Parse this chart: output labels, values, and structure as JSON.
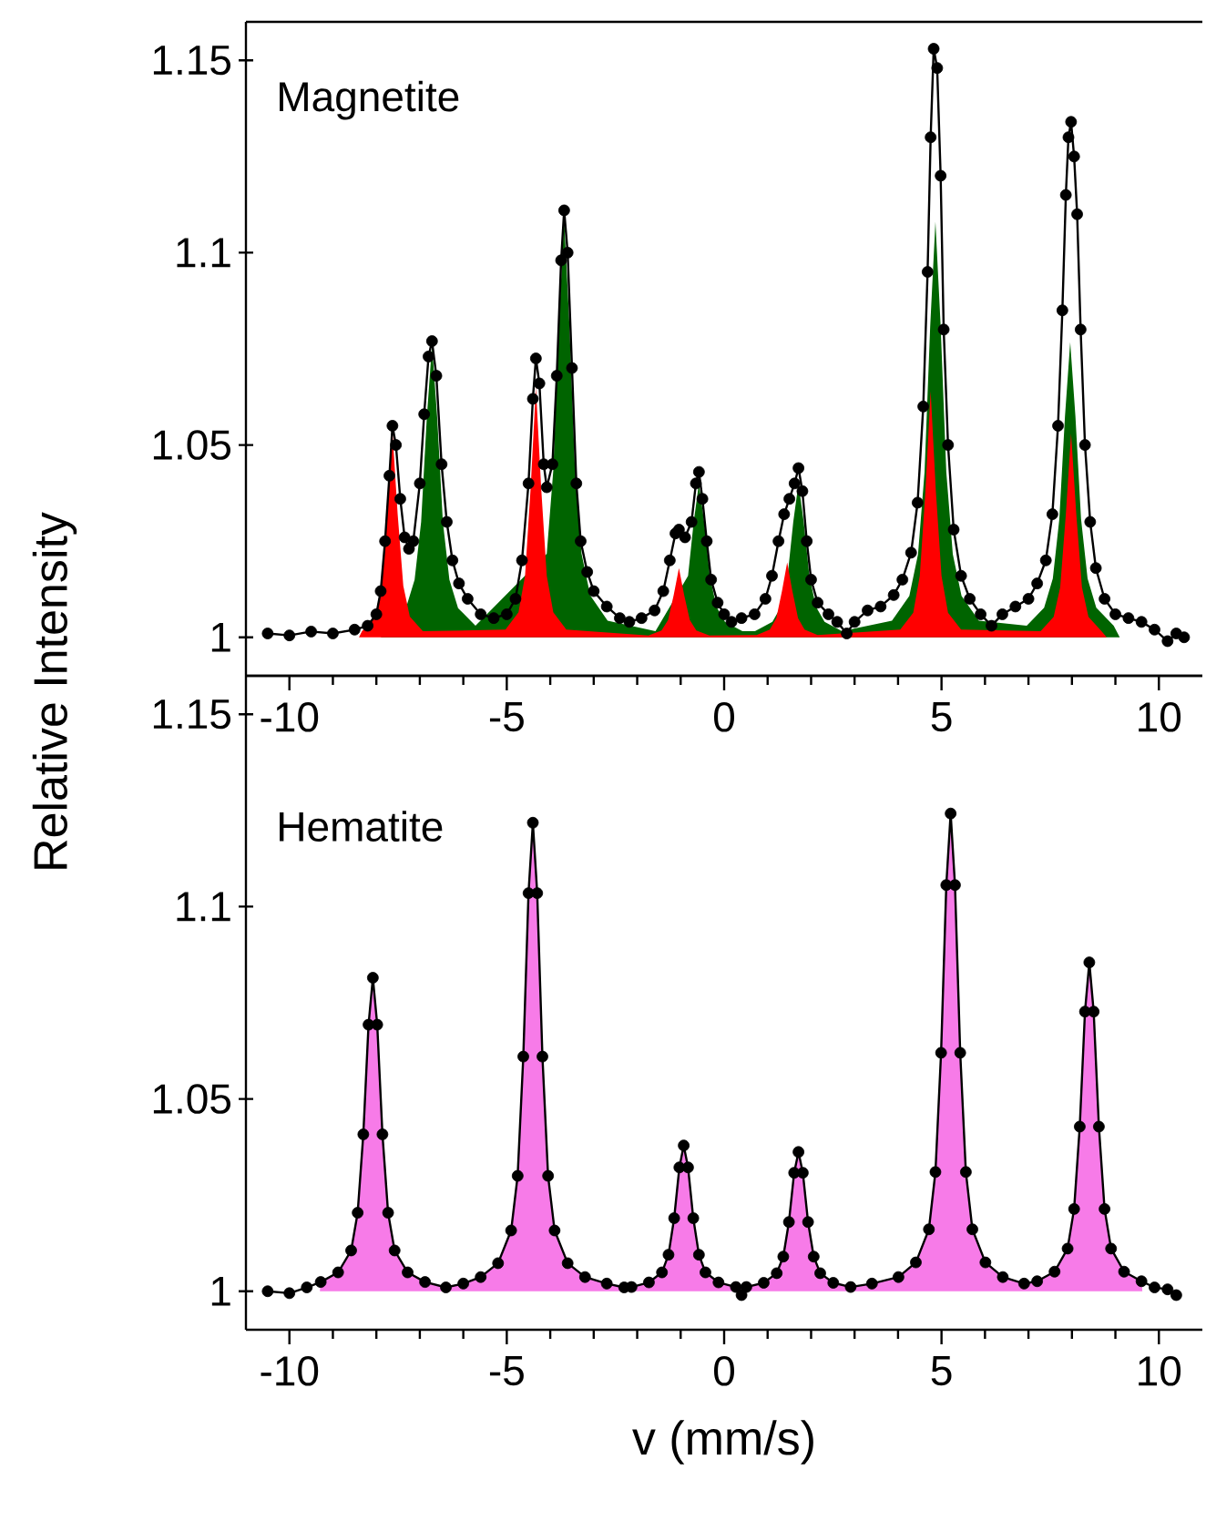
{
  "chart_data": [
    {
      "type": "scatter",
      "ylabel": "Relative Intensity",
      "annotations": [
        "Magnetite"
      ],
      "xlim": [
        -11,
        11
      ],
      "ylim": [
        0.99,
        1.16
      ],
      "xticks": [
        -10,
        -5,
        0,
        5,
        10
      ],
      "yticks": [
        1,
        1.05,
        1.1,
        1.15
      ],
      "series": [
        {
          "type": "area",
          "color": "#006400",
          "x": [
            -7.9,
            -7.72,
            -7.32,
            -7.12,
            -6.97,
            -6.84,
            -6.72,
            -6.6,
            -6.47,
            -6.32,
            -6.12,
            -5.72,
            -4.68,
            -4.28,
            -4.08,
            -3.93,
            -3.8,
            -3.68,
            -3.56,
            -3.43,
            -3.28,
            -3.08,
            -2.68,
            -1.58,
            -1.18,
            -0.98,
            -0.83,
            -0.7,
            -0.58,
            -0.46,
            -0.33,
            -0.18,
            0.02,
            0.42,
            0.71,
            1.11,
            1.31,
            1.46,
            1.59,
            1.71,
            1.83,
            1.96,
            2.11,
            2.31,
            2.71,
            3.86,
            4.26,
            4.46,
            4.61,
            4.74,
            4.86,
            4.98,
            5.11,
            5.26,
            5.46,
            5.86,
            6.96,
            7.36,
            7.56,
            7.71,
            7.84,
            7.96,
            8.08,
            8.21,
            8.36,
            8.56,
            8.96,
            9.1
          ],
          "values": [
            1.0,
            null,
            1.0076,
            1.015,
            1.03,
            1.057,
            1.076,
            1.057,
            1.03,
            1.015,
            1.0076,
            1.003,
            null,
            null,
            1.0217,
            1.0434,
            1.0815,
            1.1086,
            1.0815,
            1.0434,
            1.0217,
            1.0109,
            1.0043,
            1.0016,
            null,
            null,
            1.016,
            1.03,
            1.04,
            1.03,
            1.016,
            1.008,
            1.004,
            1.0016,
            1.0016,
            1.004,
            1.008,
            1.016,
            1.03,
            1.04,
            1.03,
            1.016,
            1.008,
            1.004,
            1.0016,
            1.0043,
            1.0108,
            1.0216,
            1.043,
            1.081,
            1.108,
            1.081,
            1.043,
            1.0216,
            1.0108,
            1.0043,
            1.003,
            1.0077,
            1.0153,
            1.0307,
            1.0575,
            1.0767,
            1.0575,
            1.0307,
            1.0153,
            1.0077,
            1.003,
            1.0
          ]
        },
        {
          "type": "area",
          "color": "#ff0000",
          "x": [
            -8.4,
            -8.33,
            -8.03,
            -7.88,
            -7.75,
            -7.63,
            -7.51,
            -7.38,
            -7.23,
            -6.93,
            -5.03,
            -4.73,
            -4.58,
            -4.45,
            -4.33,
            -4.21,
            -4.08,
            -3.93,
            -3.63,
            -1.74,
            -1.44,
            -1.29,
            -1.16,
            -1.04,
            -0.92,
            -0.79,
            -0.64,
            -0.34,
            0.75,
            1.05,
            1.2,
            1.33,
            1.45,
            1.57,
            1.7,
            1.85,
            2.15,
            4.05,
            4.35,
            4.5,
            4.63,
            4.75,
            4.87,
            5.0,
            5.15,
            5.45,
            7.28,
            7.58,
            7.73,
            7.86,
            7.98,
            8.1,
            8.23,
            8.38,
            8.68,
            8.8
          ],
          "values": [
            1.0,
            1.0016,
            1.0054,
            1.0134,
            1.032,
            1.0535,
            1.032,
            1.0134,
            1.0054,
            1.0016,
            1.002,
            1.0065,
            1.016,
            1.039,
            1.065,
            1.039,
            1.016,
            1.0065,
            1.002,
            1.0005,
            1.0018,
            1.0045,
            1.011,
            1.018,
            1.011,
            1.0045,
            1.0018,
            1.0005,
            1.0006,
            1.002,
            1.005,
            1.012,
            1.0195,
            1.012,
            1.005,
            1.002,
            1.0006,
            1.002,
            1.0064,
            1.016,
            1.038,
            1.064,
            1.038,
            1.016,
            1.0064,
            1.002,
            1.0016,
            1.0053,
            1.013,
            1.032,
            1.053,
            1.032,
            1.013,
            1.0053,
            1.0016,
            1.0
          ]
        },
        {
          "type": "line",
          "color": "#000000",
          "x": [
            -10.5,
            -10.0,
            -9.5,
            -9.0,
            -8.5,
            -8.2,
            -8.0,
            -7.9,
            -7.8,
            -7.7,
            -7.63,
            -7.55,
            -7.45,
            -7.35,
            -7.25,
            -7.15,
            -7.0,
            -6.9,
            -6.8,
            -6.72,
            -6.62,
            -6.5,
            -6.38,
            -6.25,
            -6.1,
            -5.9,
            -5.6,
            -5.3,
            -5.0,
            -4.8,
            -4.65,
            -4.5,
            -4.4,
            -4.33,
            -4.25,
            -4.15,
            -4.08,
            -3.95,
            -3.85,
            -3.75,
            -3.68,
            -3.6,
            -3.5,
            -3.4,
            -3.3,
            -3.15,
            -3.0,
            -2.7,
            -2.4,
            -2.18,
            -1.9,
            -1.6,
            -1.4,
            -1.25,
            -1.12,
            -1.04,
            -0.9,
            -0.75,
            -0.65,
            -0.58,
            -0.5,
            -0.4,
            -0.3,
            -0.15,
            0.0,
            0.17,
            0.4,
            0.7,
            0.95,
            1.1,
            1.25,
            1.38,
            1.5,
            1.62,
            1.71,
            1.8,
            1.9,
            2.0,
            2.15,
            2.4,
            2.6,
            2.82,
            3.0,
            3.3,
            3.6,
            3.9,
            4.1,
            4.3,
            4.45,
            4.58,
            4.68,
            4.75,
            4.82,
            4.9,
            4.98,
            5.05,
            5.15,
            5.28,
            5.45,
            5.65,
            5.9,
            6.15,
            6.4,
            6.7,
            7.0,
            7.2,
            7.4,
            7.55,
            7.68,
            7.78,
            7.86,
            7.92,
            7.98,
            8.05,
            8.12,
            8.2,
            8.3,
            8.42,
            8.55,
            8.75,
            9.0,
            9.3,
            9.6,
            9.9,
            10.2,
            10.4,
            10.58
          ],
          "values": [
            1.001,
            1.0005,
            1.0015,
            1.001,
            1.002,
            1.003,
            1.006,
            1.012,
            1.025,
            1.042,
            1.055,
            1.05,
            1.036,
            1.026,
            1.023,
            1.025,
            1.04,
            1.058,
            1.073,
            1.077,
            1.068,
            1.045,
            1.03,
            1.02,
            1.014,
            1.01,
            1.006,
            1.005,
            1.006,
            1.01,
            1.02,
            1.04,
            1.062,
            1.0725,
            1.066,
            1.045,
            1.039,
            1.045,
            1.068,
            1.098,
            1.111,
            1.1,
            1.07,
            1.04,
            1.025,
            1.017,
            1.012,
            1.008,
            1.005,
            1.004,
            1.005,
            1.007,
            1.012,
            1.02,
            1.027,
            1.028,
            1.026,
            1.03,
            1.04,
            1.043,
            1.036,
            1.025,
            1.015,
            1.009,
            1.006,
            1.004,
            1.005,
            1.006,
            1.01,
            1.016,
            1.025,
            1.032,
            1.036,
            1.04,
            1.044,
            1.038,
            1.025,
            1.015,
            1.009,
            1.006,
            1.004,
            1.001,
            1.004,
            1.007,
            1.008,
            1.011,
            1.015,
            1.022,
            1.035,
            1.06,
            1.095,
            1.13,
            1.153,
            1.148,
            1.12,
            1.08,
            1.05,
            1.028,
            1.016,
            1.01,
            1.006,
            1.003,
            1.006,
            1.008,
            1.01,
            1.014,
            1.02,
            1.032,
            1.055,
            1.085,
            1.115,
            1.13,
            1.134,
            1.125,
            1.11,
            1.08,
            1.05,
            1.03,
            1.018,
            1.01,
            1.006,
            1.005,
            1.004,
            1.002,
            0.999,
            1.001,
            1.0
          ]
        },
        {
          "color": "#000000",
          "marker": "circle",
          "x": [
            -10.5,
            -10.0,
            -9.5,
            -9.0,
            -8.5,
            -8.2,
            -8.0,
            -7.9,
            -7.8,
            -7.7,
            -7.63,
            -7.55,
            -7.45,
            -7.35,
            -7.25,
            -7.15,
            -7.0,
            -6.9,
            -6.8,
            -6.72,
            -6.62,
            -6.5,
            -6.38,
            -6.25,
            -6.1,
            -5.9,
            -5.6,
            -5.3,
            -5.0,
            -4.8,
            -4.65,
            -4.5,
            -4.4,
            -4.33,
            -4.25,
            -4.15,
            -4.08,
            -3.95,
            -3.85,
            -3.75,
            -3.68,
            -3.6,
            -3.5,
            -3.4,
            -3.3,
            -3.15,
            -3.0,
            -2.7,
            -2.4,
            -2.18,
            -1.9,
            -1.6,
            -1.4,
            -1.25,
            -1.12,
            -1.04,
            -0.9,
            -0.75,
            -0.65,
            -0.58,
            -0.5,
            -0.4,
            -0.3,
            -0.15,
            0.0,
            0.17,
            0.4,
            0.7,
            0.95,
            1.1,
            1.25,
            1.38,
            1.5,
            1.62,
            1.71,
            1.8,
            1.9,
            2.0,
            2.15,
            2.4,
            2.6,
            2.82,
            3.0,
            3.3,
            3.6,
            3.9,
            4.1,
            4.3,
            4.45,
            4.58,
            4.68,
            4.75,
            4.82,
            4.9,
            4.98,
            5.05,
            5.15,
            5.28,
            5.45,
            5.65,
            5.9,
            6.15,
            6.4,
            6.7,
            7.0,
            7.2,
            7.4,
            7.55,
            7.68,
            7.78,
            7.86,
            7.92,
            7.98,
            8.05,
            8.12,
            8.2,
            8.3,
            8.42,
            8.55,
            8.75,
            9.0,
            9.3,
            9.6,
            9.9,
            10.2,
            10.4,
            10.58
          ],
          "values": [
            1.001,
            1.0005,
            1.0015,
            1.001,
            1.002,
            1.003,
            1.006,
            1.012,
            1.025,
            1.042,
            1.055,
            1.05,
            1.036,
            1.026,
            1.023,
            1.025,
            1.04,
            1.058,
            1.073,
            1.077,
            1.068,
            1.045,
            1.03,
            1.02,
            1.014,
            1.01,
            1.006,
            1.005,
            1.006,
            1.01,
            1.02,
            1.04,
            1.062,
            1.0725,
            1.066,
            1.045,
            1.039,
            1.045,
            1.068,
            1.098,
            1.111,
            1.1,
            1.07,
            1.04,
            1.025,
            1.017,
            1.012,
            1.008,
            1.005,
            1.004,
            1.005,
            1.007,
            1.012,
            1.02,
            1.027,
            1.028,
            1.026,
            1.03,
            1.04,
            1.043,
            1.036,
            1.025,
            1.015,
            1.009,
            1.006,
            1.004,
            1.005,
            1.006,
            1.01,
            1.016,
            1.025,
            1.032,
            1.036,
            1.04,
            1.044,
            1.038,
            1.025,
            1.015,
            1.009,
            1.006,
            1.004,
            1.001,
            1.004,
            1.007,
            1.008,
            1.011,
            1.015,
            1.022,
            1.035,
            1.06,
            1.095,
            1.13,
            1.153,
            1.148,
            1.12,
            1.08,
            1.05,
            1.028,
            1.016,
            1.01,
            1.006,
            1.003,
            1.006,
            1.008,
            1.01,
            1.014,
            1.02,
            1.032,
            1.055,
            1.085,
            1.115,
            1.13,
            1.134,
            1.125,
            1.11,
            1.08,
            1.05,
            1.03,
            1.018,
            1.01,
            1.006,
            1.005,
            1.004,
            1.002,
            0.999,
            1.001,
            1.0
          ]
        }
      ]
    },
    {
      "type": "scatter",
      "xlabel": "v (mm/s)",
      "annotations": [
        "Hematite"
      ],
      "xlim": [
        -11,
        11
      ],
      "ylim": [
        0.99,
        1.16
      ],
      "xticks": [
        -10,
        -5,
        0,
        5,
        10
      ],
      "yticks": [
        1,
        1.05,
        1.1,
        1.15
      ],
      "series": [
        {
          "type": "area",
          "color": "#f77be8",
          "x": [
            -9.3,
            -9.28,
            -8.88,
            -8.58,
            -8.43,
            -8.3,
            -8.18,
            -8.08,
            -7.98,
            -7.86,
            -7.73,
            -7.58,
            -7.28,
            -6.88,
            -6.4,
            -6.0,
            -5.6,
            -5.2,
            -4.9,
            -4.75,
            -4.62,
            -4.5,
            -4.4,
            -4.3,
            -4.18,
            -4.05,
            -3.9,
            -3.6,
            -3.2,
            -2.7,
            -2.3,
            -2.13,
            -1.73,
            -1.43,
            -1.28,
            -1.15,
            -1.03,
            -0.93,
            -0.83,
            -0.71,
            -0.58,
            -0.43,
            -0.13,
            0.27,
            0.51,
            0.91,
            1.21,
            1.36,
            1.49,
            1.61,
            1.71,
            1.81,
            1.93,
            2.06,
            2.21,
            2.51,
            2.91,
            3.4,
            4.01,
            4.41,
            4.71,
            4.86,
            4.99,
            5.11,
            5.21,
            5.31,
            5.43,
            5.56,
            5.71,
            6.01,
            6.41,
            6.9,
            7.2,
            7.6,
            7.9,
            8.05,
            8.18,
            8.3,
            8.4,
            8.5,
            8.62,
            8.75,
            8.9,
            9.2,
            9.6,
            9.62
          ],
          "values": [
            1.0,
            1.0024,
            1.0049,
            1.0106,
            1.0204,
            1.0408,
            1.0693,
            1.0815,
            1.0693,
            1.0408,
            1.0204,
            1.0106,
            1.0049,
            1.0024,
            1.001,
            1.002,
            1.0037,
            1.0073,
            1.0158,
            1.03,
            1.061,
            1.1035,
            1.1218,
            1.1035,
            1.061,
            1.03,
            1.0158,
            1.0073,
            1.0037,
            1.002,
            1.001,
            1.0011,
            1.0023,
            1.0049,
            1.0095,
            1.019,
            1.0322,
            1.0379,
            1.0322,
            1.019,
            1.0095,
            1.0049,
            1.0023,
            1.0011,
            1.0011,
            1.0022,
            1.0047,
            1.009,
            1.018,
            1.0308,
            1.0362,
            1.0308,
            1.018,
            1.009,
            1.0047,
            1.0022,
            1.0011,
            1.002,
            1.0037,
            1.0075,
            1.0161,
            1.031,
            1.062,
            1.1056,
            1.1242,
            1.1056,
            1.062,
            1.031,
            1.0161,
            1.0075,
            1.0037,
            1.002,
            1.0026,
            1.0051,
            1.0111,
            1.0214,
            1.0428,
            1.0727,
            1.0855,
            1.0727,
            1.0428,
            1.0214,
            1.0111,
            1.0051,
            1.0026,
            1.0
          ]
        },
        {
          "type": "line",
          "color": "#000000",
          "x": [
            -10.5,
            -10.0,
            -9.6,
            -9.28,
            -8.88,
            -8.58,
            -8.43,
            -8.3,
            -8.18,
            -8.08,
            -7.98,
            -7.86,
            -7.73,
            -7.58,
            -7.28,
            -6.88,
            -6.4,
            -6.0,
            -5.6,
            -5.2,
            -4.9,
            -4.75,
            -4.62,
            -4.5,
            -4.4,
            -4.3,
            -4.18,
            -4.05,
            -3.9,
            -3.6,
            -3.2,
            -2.7,
            -2.3,
            -2.13,
            -1.73,
            -1.43,
            -1.28,
            -1.15,
            -1.03,
            -0.93,
            -0.83,
            -0.71,
            -0.58,
            -0.43,
            -0.13,
            0.27,
            0.4,
            0.51,
            0.91,
            1.21,
            1.36,
            1.49,
            1.61,
            1.71,
            1.81,
            1.93,
            2.06,
            2.21,
            2.51,
            2.91,
            3.4,
            4.01,
            4.41,
            4.71,
            4.86,
            4.99,
            5.11,
            5.21,
            5.31,
            5.43,
            5.56,
            5.71,
            6.01,
            6.41,
            6.9,
            7.2,
            7.6,
            7.9,
            8.05,
            8.18,
            8.3,
            8.4,
            8.5,
            8.62,
            8.75,
            8.9,
            9.2,
            9.6,
            9.9,
            10.2,
            10.4
          ],
          "values": [
            1.0,
            0.9995,
            1.001,
            1.0024,
            1.0049,
            1.0106,
            1.0204,
            1.0408,
            1.0693,
            1.0815,
            1.0693,
            1.0408,
            1.0204,
            1.0106,
            1.0049,
            1.0024,
            1.001,
            1.002,
            1.0037,
            1.0073,
            1.0158,
            1.03,
            1.061,
            1.1035,
            1.1218,
            1.1035,
            1.061,
            1.03,
            1.0158,
            1.0073,
            1.0037,
            1.002,
            1.001,
            1.0011,
            1.0023,
            1.0049,
            1.0095,
            1.019,
            1.0322,
            1.0379,
            1.0322,
            1.019,
            1.0095,
            1.0049,
            1.0023,
            1.0011,
            0.999,
            1.0011,
            1.0022,
            1.0047,
            1.009,
            1.018,
            1.0308,
            1.0362,
            1.0308,
            1.018,
            1.009,
            1.0047,
            1.0022,
            1.0011,
            1.002,
            1.0037,
            1.0075,
            1.0161,
            1.031,
            1.062,
            1.1056,
            1.1242,
            1.1056,
            1.062,
            1.031,
            1.0161,
            1.0075,
            1.0037,
            1.002,
            1.0026,
            1.0051,
            1.0111,
            1.0214,
            1.0428,
            1.0727,
            1.0855,
            1.0727,
            1.0428,
            1.0214,
            1.0111,
            1.0051,
            1.0026,
            1.001,
            1.0005,
            0.999
          ]
        },
        {
          "color": "#000000",
          "marker": "circle",
          "x": [
            -10.5,
            -10.0,
            -9.6,
            -9.28,
            -8.88,
            -8.58,
            -8.43,
            -8.3,
            -8.18,
            -8.08,
            -7.98,
            -7.86,
            -7.73,
            -7.58,
            -7.28,
            -6.88,
            -6.4,
            -6.0,
            -5.6,
            -5.2,
            -4.9,
            -4.75,
            -4.62,
            -4.5,
            -4.4,
            -4.3,
            -4.18,
            -4.05,
            -3.9,
            -3.6,
            -3.2,
            -2.7,
            -2.3,
            -2.13,
            -1.73,
            -1.43,
            -1.28,
            -1.15,
            -1.03,
            -0.93,
            -0.83,
            -0.71,
            -0.58,
            -0.43,
            -0.13,
            0.27,
            0.4,
            0.51,
            0.91,
            1.21,
            1.36,
            1.49,
            1.61,
            1.71,
            1.81,
            1.93,
            2.06,
            2.21,
            2.51,
            2.91,
            3.4,
            4.01,
            4.41,
            4.71,
            4.86,
            4.99,
            5.11,
            5.21,
            5.31,
            5.43,
            5.56,
            5.71,
            6.01,
            6.41,
            6.9,
            7.2,
            7.6,
            7.9,
            8.05,
            8.18,
            8.3,
            8.4,
            8.5,
            8.62,
            8.75,
            8.9,
            9.2,
            9.6,
            9.9,
            10.2,
            10.4
          ],
          "values": [
            1.0,
            0.9995,
            1.001,
            1.0024,
            1.0049,
            1.0106,
            1.0204,
            1.0408,
            1.0693,
            1.0815,
            1.0693,
            1.0408,
            1.0204,
            1.0106,
            1.0049,
            1.0024,
            1.001,
            1.002,
            1.0037,
            1.0073,
            1.0158,
            1.03,
            1.061,
            1.1035,
            1.1218,
            1.1035,
            1.061,
            1.03,
            1.0158,
            1.0073,
            1.0037,
            1.002,
            1.001,
            1.0011,
            1.0023,
            1.0049,
            1.0095,
            1.019,
            1.0322,
            1.0379,
            1.0322,
            1.019,
            1.0095,
            1.0049,
            1.0023,
            1.0011,
            0.999,
            1.0011,
            1.0022,
            1.0047,
            1.009,
            1.018,
            1.0308,
            1.0362,
            1.0308,
            1.018,
            1.009,
            1.0047,
            1.0022,
            1.0011,
            1.002,
            1.0037,
            1.0075,
            1.0161,
            1.031,
            1.062,
            1.1056,
            1.1242,
            1.1056,
            1.062,
            1.031,
            1.0161,
            1.0075,
            1.0037,
            1.002,
            1.0026,
            1.0051,
            1.0111,
            1.0214,
            1.0428,
            1.0727,
            1.0855,
            1.0727,
            1.0428,
            1.0214,
            1.0111,
            1.0051,
            1.0026,
            1.001,
            1.0005,
            0.999
          ]
        }
      ]
    }
  ]
}
